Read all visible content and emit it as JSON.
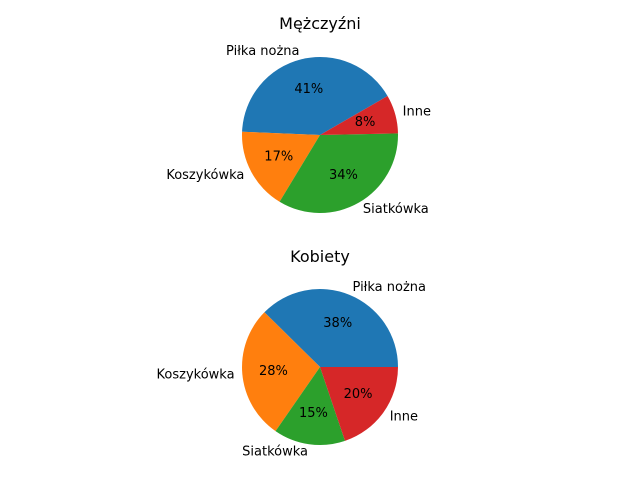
{
  "chart_data": [
    {
      "type": "pie",
      "title": "Mężczyźni",
      "categories": [
        "Piłka nożna",
        "Koszykówka",
        "Siatkówka",
        "Inne"
      ],
      "values": [
        41,
        17,
        34,
        8
      ],
      "value_labels": [
        "41%",
        "17%",
        "34%",
        "8%"
      ],
      "colors": [
        "#1f77b4",
        "#ff7f0e",
        "#2ca02c",
        "#d62728"
      ],
      "start_angle_deg": 30
    },
    {
      "type": "pie",
      "title": "Kobiety",
      "categories": [
        "Piłka nożna",
        "Koszykówka",
        "Siatkówka",
        "Inne"
      ],
      "values": [
        38,
        28,
        15,
        20
      ],
      "value_labels": [
        "38%",
        "28%",
        "15%",
        "20%"
      ],
      "colors": [
        "#1f77b4",
        "#ff7f0e",
        "#2ca02c",
        "#d62728"
      ],
      "start_angle_deg": 0
    }
  ]
}
